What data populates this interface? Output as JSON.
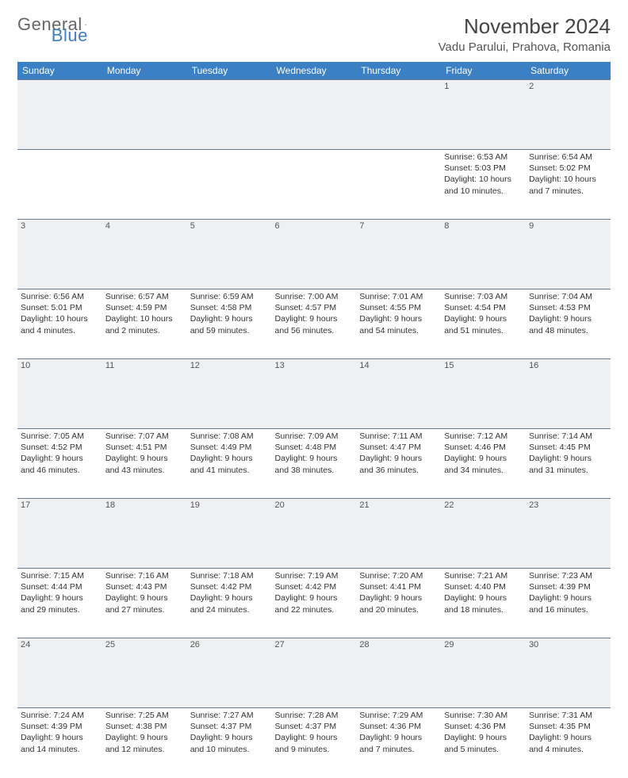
{
  "logo": {
    "part1": "General",
    "part2": "Blue"
  },
  "title": "November 2024",
  "location": "Vadu Parului, Prahova, Romania",
  "colors": {
    "header_bg": "#3b7fc4",
    "header_text": "#ffffff",
    "daybar_bg": "#eef0f2",
    "border": "#6b7a8f",
    "text": "#333333"
  },
  "weekdays": [
    "Sunday",
    "Monday",
    "Tuesday",
    "Wednesday",
    "Thursday",
    "Friday",
    "Saturday"
  ],
  "weeks": [
    {
      "nums": [
        "",
        "",
        "",
        "",
        "",
        "1",
        "2"
      ],
      "cells": [
        null,
        null,
        null,
        null,
        null,
        {
          "sunrise": "Sunrise: 6:53 AM",
          "sunset": "Sunset: 5:03 PM",
          "daylight": "Daylight: 10 hours and 10 minutes."
        },
        {
          "sunrise": "Sunrise: 6:54 AM",
          "sunset": "Sunset: 5:02 PM",
          "daylight": "Daylight: 10 hours and 7 minutes."
        }
      ]
    },
    {
      "nums": [
        "3",
        "4",
        "5",
        "6",
        "7",
        "8",
        "9"
      ],
      "cells": [
        {
          "sunrise": "Sunrise: 6:56 AM",
          "sunset": "Sunset: 5:01 PM",
          "daylight": "Daylight: 10 hours and 4 minutes."
        },
        {
          "sunrise": "Sunrise: 6:57 AM",
          "sunset": "Sunset: 4:59 PM",
          "daylight": "Daylight: 10 hours and 2 minutes."
        },
        {
          "sunrise": "Sunrise: 6:59 AM",
          "sunset": "Sunset: 4:58 PM",
          "daylight": "Daylight: 9 hours and 59 minutes."
        },
        {
          "sunrise": "Sunrise: 7:00 AM",
          "sunset": "Sunset: 4:57 PM",
          "daylight": "Daylight: 9 hours and 56 minutes."
        },
        {
          "sunrise": "Sunrise: 7:01 AM",
          "sunset": "Sunset: 4:55 PM",
          "daylight": "Daylight: 9 hours and 54 minutes."
        },
        {
          "sunrise": "Sunrise: 7:03 AM",
          "sunset": "Sunset: 4:54 PM",
          "daylight": "Daylight: 9 hours and 51 minutes."
        },
        {
          "sunrise": "Sunrise: 7:04 AM",
          "sunset": "Sunset: 4:53 PM",
          "daylight": "Daylight: 9 hours and 48 minutes."
        }
      ]
    },
    {
      "nums": [
        "10",
        "11",
        "12",
        "13",
        "14",
        "15",
        "16"
      ],
      "cells": [
        {
          "sunrise": "Sunrise: 7:05 AM",
          "sunset": "Sunset: 4:52 PM",
          "daylight": "Daylight: 9 hours and 46 minutes."
        },
        {
          "sunrise": "Sunrise: 7:07 AM",
          "sunset": "Sunset: 4:51 PM",
          "daylight": "Daylight: 9 hours and 43 minutes."
        },
        {
          "sunrise": "Sunrise: 7:08 AM",
          "sunset": "Sunset: 4:49 PM",
          "daylight": "Daylight: 9 hours and 41 minutes."
        },
        {
          "sunrise": "Sunrise: 7:09 AM",
          "sunset": "Sunset: 4:48 PM",
          "daylight": "Daylight: 9 hours and 38 minutes."
        },
        {
          "sunrise": "Sunrise: 7:11 AM",
          "sunset": "Sunset: 4:47 PM",
          "daylight": "Daylight: 9 hours and 36 minutes."
        },
        {
          "sunrise": "Sunrise: 7:12 AM",
          "sunset": "Sunset: 4:46 PM",
          "daylight": "Daylight: 9 hours and 34 minutes."
        },
        {
          "sunrise": "Sunrise: 7:14 AM",
          "sunset": "Sunset: 4:45 PM",
          "daylight": "Daylight: 9 hours and 31 minutes."
        }
      ]
    },
    {
      "nums": [
        "17",
        "18",
        "19",
        "20",
        "21",
        "22",
        "23"
      ],
      "cells": [
        {
          "sunrise": "Sunrise: 7:15 AM",
          "sunset": "Sunset: 4:44 PM",
          "daylight": "Daylight: 9 hours and 29 minutes."
        },
        {
          "sunrise": "Sunrise: 7:16 AM",
          "sunset": "Sunset: 4:43 PM",
          "daylight": "Daylight: 9 hours and 27 minutes."
        },
        {
          "sunrise": "Sunrise: 7:18 AM",
          "sunset": "Sunset: 4:42 PM",
          "daylight": "Daylight: 9 hours and 24 minutes."
        },
        {
          "sunrise": "Sunrise: 7:19 AM",
          "sunset": "Sunset: 4:42 PM",
          "daylight": "Daylight: 9 hours and 22 minutes."
        },
        {
          "sunrise": "Sunrise: 7:20 AM",
          "sunset": "Sunset: 4:41 PM",
          "daylight": "Daylight: 9 hours and 20 minutes."
        },
        {
          "sunrise": "Sunrise: 7:21 AM",
          "sunset": "Sunset: 4:40 PM",
          "daylight": "Daylight: 9 hours and 18 minutes."
        },
        {
          "sunrise": "Sunrise: 7:23 AM",
          "sunset": "Sunset: 4:39 PM",
          "daylight": "Daylight: 9 hours and 16 minutes."
        }
      ]
    },
    {
      "nums": [
        "24",
        "25",
        "26",
        "27",
        "28",
        "29",
        "30"
      ],
      "cells": [
        {
          "sunrise": "Sunrise: 7:24 AM",
          "sunset": "Sunset: 4:39 PM",
          "daylight": "Daylight: 9 hours and 14 minutes."
        },
        {
          "sunrise": "Sunrise: 7:25 AM",
          "sunset": "Sunset: 4:38 PM",
          "daylight": "Daylight: 9 hours and 12 minutes."
        },
        {
          "sunrise": "Sunrise: 7:27 AM",
          "sunset": "Sunset: 4:37 PM",
          "daylight": "Daylight: 9 hours and 10 minutes."
        },
        {
          "sunrise": "Sunrise: 7:28 AM",
          "sunset": "Sunset: 4:37 PM",
          "daylight": "Daylight: 9 hours and 9 minutes."
        },
        {
          "sunrise": "Sunrise: 7:29 AM",
          "sunset": "Sunset: 4:36 PM",
          "daylight": "Daylight: 9 hours and 7 minutes."
        },
        {
          "sunrise": "Sunrise: 7:30 AM",
          "sunset": "Sunset: 4:36 PM",
          "daylight": "Daylight: 9 hours and 5 minutes."
        },
        {
          "sunrise": "Sunrise: 7:31 AM",
          "sunset": "Sunset: 4:35 PM",
          "daylight": "Daylight: 9 hours and 4 minutes."
        }
      ]
    }
  ]
}
